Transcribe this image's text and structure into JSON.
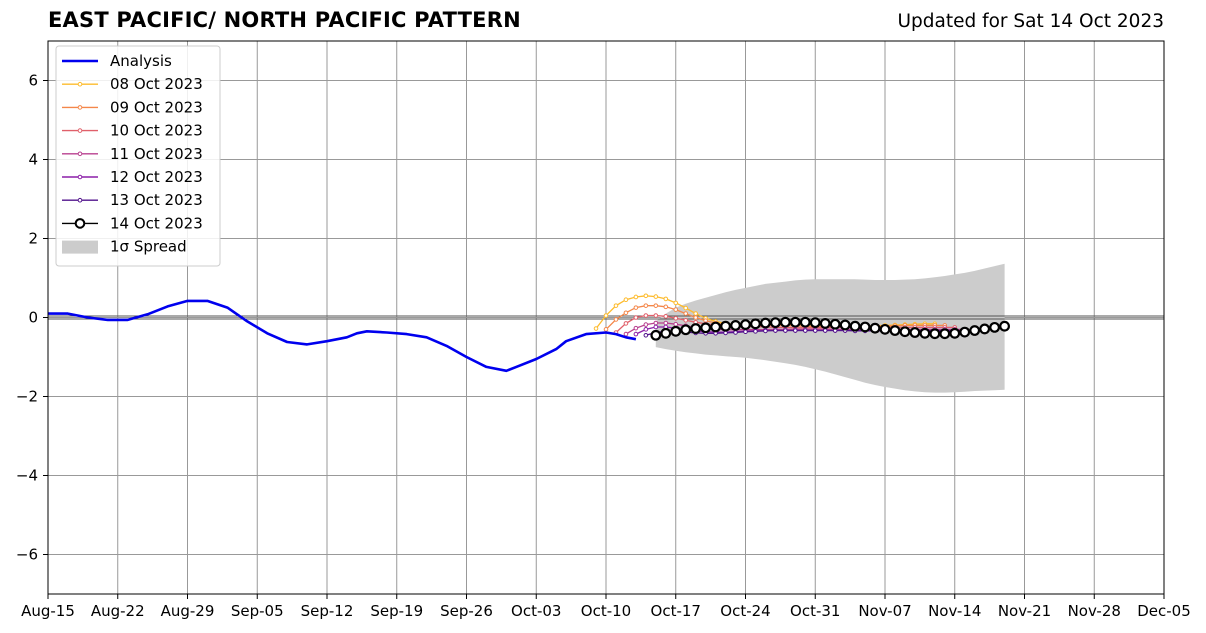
{
  "header": {
    "title": "EAST PACIFIC/ NORTH PACIFIC PATTERN",
    "updated": "Updated for Sat 14 Oct 2023"
  },
  "chart_data": {
    "type": "line",
    "title": "EAST PACIFIC/ NORTH PACIFIC PATTERN",
    "subtitle": "Updated for Sat 14 Oct 2023",
    "xlabel": "",
    "ylabel": "",
    "x_range": [
      "2023-08-15",
      "2023-12-05"
    ],
    "x_ticks": [
      "Aug-15",
      "Aug-22",
      "Aug-29",
      "Sep-05",
      "Sep-12",
      "Sep-19",
      "Sep-26",
      "Oct-03",
      "Oct-10",
      "Oct-17",
      "Oct-24",
      "Oct-31",
      "Nov-07",
      "Nov-14",
      "Nov-21",
      "Nov-28",
      "Dec-05"
    ],
    "x_tick_dates": [
      "2023-08-15",
      "2023-08-22",
      "2023-08-29",
      "2023-09-05",
      "2023-09-12",
      "2023-09-19",
      "2023-09-26",
      "2023-10-03",
      "2023-10-10",
      "2023-10-17",
      "2023-10-24",
      "2023-10-31",
      "2023-11-07",
      "2023-11-14",
      "2023-11-21",
      "2023-11-28",
      "2023-12-05"
    ],
    "ylim": [
      -7,
      7
    ],
    "y_ticks": [
      -6,
      -4,
      -2,
      0,
      2,
      4,
      6
    ],
    "y_tick_labels": [
      "−6",
      "−4",
      "−2",
      "0",
      "2",
      "4",
      "6"
    ],
    "grid": true,
    "legend_position": "top-left",
    "analysis": {
      "name": "Analysis",
      "color": "#0000ee",
      "points": [
        [
          "2023-08-15",
          0.1
        ],
        [
          "2023-08-17",
          0.1
        ],
        [
          "2023-08-19",
          0.0
        ],
        [
          "2023-08-21",
          -0.06
        ],
        [
          "2023-08-23",
          -0.06
        ],
        [
          "2023-08-25",
          0.08
        ],
        [
          "2023-08-27",
          0.28
        ],
        [
          "2023-08-29",
          0.42
        ],
        [
          "2023-08-31",
          0.42
        ],
        [
          "2023-09-02",
          0.25
        ],
        [
          "2023-09-04",
          -0.1
        ],
        [
          "2023-09-06",
          -0.4
        ],
        [
          "2023-09-08",
          -0.62
        ],
        [
          "2023-09-10",
          -0.68
        ],
        [
          "2023-09-12",
          -0.6
        ],
        [
          "2023-09-14",
          -0.5
        ],
        [
          "2023-09-15",
          -0.4
        ],
        [
          "2023-09-16",
          -0.35
        ],
        [
          "2023-09-18",
          -0.38
        ],
        [
          "2023-09-20",
          -0.42
        ],
        [
          "2023-09-22",
          -0.5
        ],
        [
          "2023-09-24",
          -0.72
        ],
        [
          "2023-09-26",
          -1.0
        ],
        [
          "2023-09-28",
          -1.25
        ],
        [
          "2023-09-30",
          -1.35
        ],
        [
          "2023-10-01",
          -1.25
        ],
        [
          "2023-10-03",
          -1.05
        ],
        [
          "2023-10-05",
          -0.8
        ],
        [
          "2023-10-06",
          -0.6
        ],
        [
          "2023-10-08",
          -0.42
        ],
        [
          "2023-10-10",
          -0.38
        ],
        [
          "2023-10-11",
          -0.42
        ],
        [
          "2023-10-12",
          -0.5
        ],
        [
          "2023-10-13",
          -0.55
        ]
      ]
    },
    "series": [
      {
        "name": "08 Oct 2023",
        "color": "#fdbb2d",
        "start": "2023-10-09",
        "values": [
          -0.28,
          0.05,
          0.3,
          0.45,
          0.52,
          0.55,
          0.53,
          0.47,
          0.37,
          0.24,
          0.1,
          -0.02,
          -0.1,
          -0.15,
          -0.18,
          -0.2,
          -0.2,
          -0.19,
          -0.18,
          -0.17,
          -0.17,
          -0.18,
          -0.19,
          -0.2,
          -0.21,
          -0.22,
          -0.22,
          -0.22,
          -0.21,
          -0.2,
          -0.19,
          -0.18,
          -0.17,
          -0.16,
          -0.16
        ]
      },
      {
        "name": "09 Oct 2023",
        "color": "#f4874a",
        "start": "2023-10-10",
        "values": [
          -0.3,
          -0.05,
          0.12,
          0.25,
          0.3,
          0.3,
          0.27,
          0.2,
          0.1,
          0.0,
          -0.08,
          -0.14,
          -0.18,
          -0.2,
          -0.21,
          -0.21,
          -0.2,
          -0.2,
          -0.2,
          -0.21,
          -0.22,
          -0.23,
          -0.24,
          -0.25,
          -0.25,
          -0.25,
          -0.24,
          -0.23,
          -0.22,
          -0.21,
          -0.2,
          -0.2,
          -0.2,
          -0.2,
          -0.2
        ]
      },
      {
        "name": "10 Oct 2023",
        "color": "#e0606a",
        "start": "2023-10-11",
        "values": [
          -0.38,
          -0.15,
          0.0,
          0.05,
          0.05,
          0.03,
          -0.02,
          -0.07,
          -0.12,
          -0.16,
          -0.19,
          -0.21,
          -0.22,
          -0.23,
          -0.23,
          -0.24,
          -0.25,
          -0.25,
          -0.26,
          -0.26,
          -0.26,
          -0.26,
          -0.25,
          -0.25,
          -0.24,
          -0.24,
          -0.24,
          -0.24,
          -0.25,
          -0.25,
          -0.25,
          -0.25,
          -0.25,
          -0.25,
          -0.25
        ]
      },
      {
        "name": "11 Oct 2023",
        "color": "#b83f8f",
        "start": "2023-10-12",
        "values": [
          -0.42,
          -0.27,
          -0.18,
          -0.14,
          -0.14,
          -0.17,
          -0.21,
          -0.25,
          -0.28,
          -0.3,
          -0.31,
          -0.31,
          -0.31,
          -0.31,
          -0.31,
          -0.3,
          -0.3,
          -0.3,
          -0.3,
          -0.3,
          -0.3,
          -0.3,
          -0.3,
          -0.3,
          -0.3,
          -0.3,
          -0.3,
          -0.3,
          -0.3,
          -0.3,
          -0.3,
          -0.3,
          -0.3,
          -0.3,
          -0.3
        ]
      },
      {
        "name": "12 Oct 2023",
        "color": "#8c1fa8",
        "start": "2023-10-13",
        "values": [
          -0.42,
          -0.3,
          -0.24,
          -0.24,
          -0.27,
          -0.31,
          -0.34,
          -0.36,
          -0.37,
          -0.37,
          -0.36,
          -0.35,
          -0.34,
          -0.33,
          -0.33,
          -0.33,
          -0.33,
          -0.33,
          -0.33,
          -0.33,
          -0.33,
          -0.33,
          -0.33,
          -0.33,
          -0.33,
          -0.33,
          -0.33,
          -0.33,
          -0.33,
          -0.33,
          -0.33,
          -0.33,
          -0.33,
          -0.33,
          -0.33
        ]
      },
      {
        "name": "13 Oct 2023",
        "color": "#51128c",
        "start": "2023-10-14",
        "values": [
          -0.45,
          -0.38,
          -0.35,
          -0.35,
          -0.37,
          -0.39,
          -0.4,
          -0.4,
          -0.39,
          -0.38,
          -0.36,
          -0.35,
          -0.34,
          -0.33,
          -0.33,
          -0.33,
          -0.33,
          -0.33,
          -0.33,
          -0.33,
          -0.33,
          -0.34,
          -0.34,
          -0.34,
          -0.34,
          -0.34,
          -0.34,
          -0.34,
          -0.34,
          -0.34,
          -0.34,
          -0.34,
          -0.34,
          -0.34,
          -0.34
        ]
      },
      {
        "name": "14 Oct 2023",
        "color": "#000000",
        "start": "2023-10-15",
        "values": [
          -0.45,
          -0.4,
          -0.35,
          -0.31,
          -0.28,
          -0.26,
          -0.24,
          -0.22,
          -0.2,
          -0.18,
          -0.16,
          -0.14,
          -0.13,
          -0.12,
          -0.12,
          -0.12,
          -0.13,
          -0.15,
          -0.17,
          -0.19,
          -0.22,
          -0.24,
          -0.27,
          -0.3,
          -0.33,
          -0.36,
          -0.38,
          -0.4,
          -0.41,
          -0.41,
          -0.4,
          -0.37,
          -0.33,
          -0.29,
          -0.25,
          -0.22
        ]
      }
    ],
    "spread": {
      "name": "1σ Spread",
      "color": "#cccccc",
      "start": "2023-10-15",
      "upper": [
        -0.1,
        0.1,
        0.25,
        0.35,
        0.43,
        0.5,
        0.57,
        0.64,
        0.7,
        0.75,
        0.8,
        0.85,
        0.88,
        0.91,
        0.94,
        0.96,
        0.97,
        0.97,
        0.97,
        0.97,
        0.97,
        0.96,
        0.95,
        0.95,
        0.95,
        0.96,
        0.97,
        0.99,
        1.02,
        1.05,
        1.09,
        1.13,
        1.18,
        1.24,
        1.3,
        1.36
      ],
      "lower": [
        -0.75,
        -0.8,
        -0.84,
        -0.88,
        -0.91,
        -0.94,
        -0.96,
        -0.98,
        -1.0,
        -1.02,
        -1.05,
        -1.08,
        -1.12,
        -1.16,
        -1.2,
        -1.25,
        -1.31,
        -1.37,
        -1.44,
        -1.51,
        -1.58,
        -1.65,
        -1.71,
        -1.76,
        -1.8,
        -1.84,
        -1.87,
        -1.89,
        -1.9,
        -1.9,
        -1.89,
        -1.88,
        -1.86,
        -1.85,
        -1.84,
        -1.83
      ]
    }
  }
}
